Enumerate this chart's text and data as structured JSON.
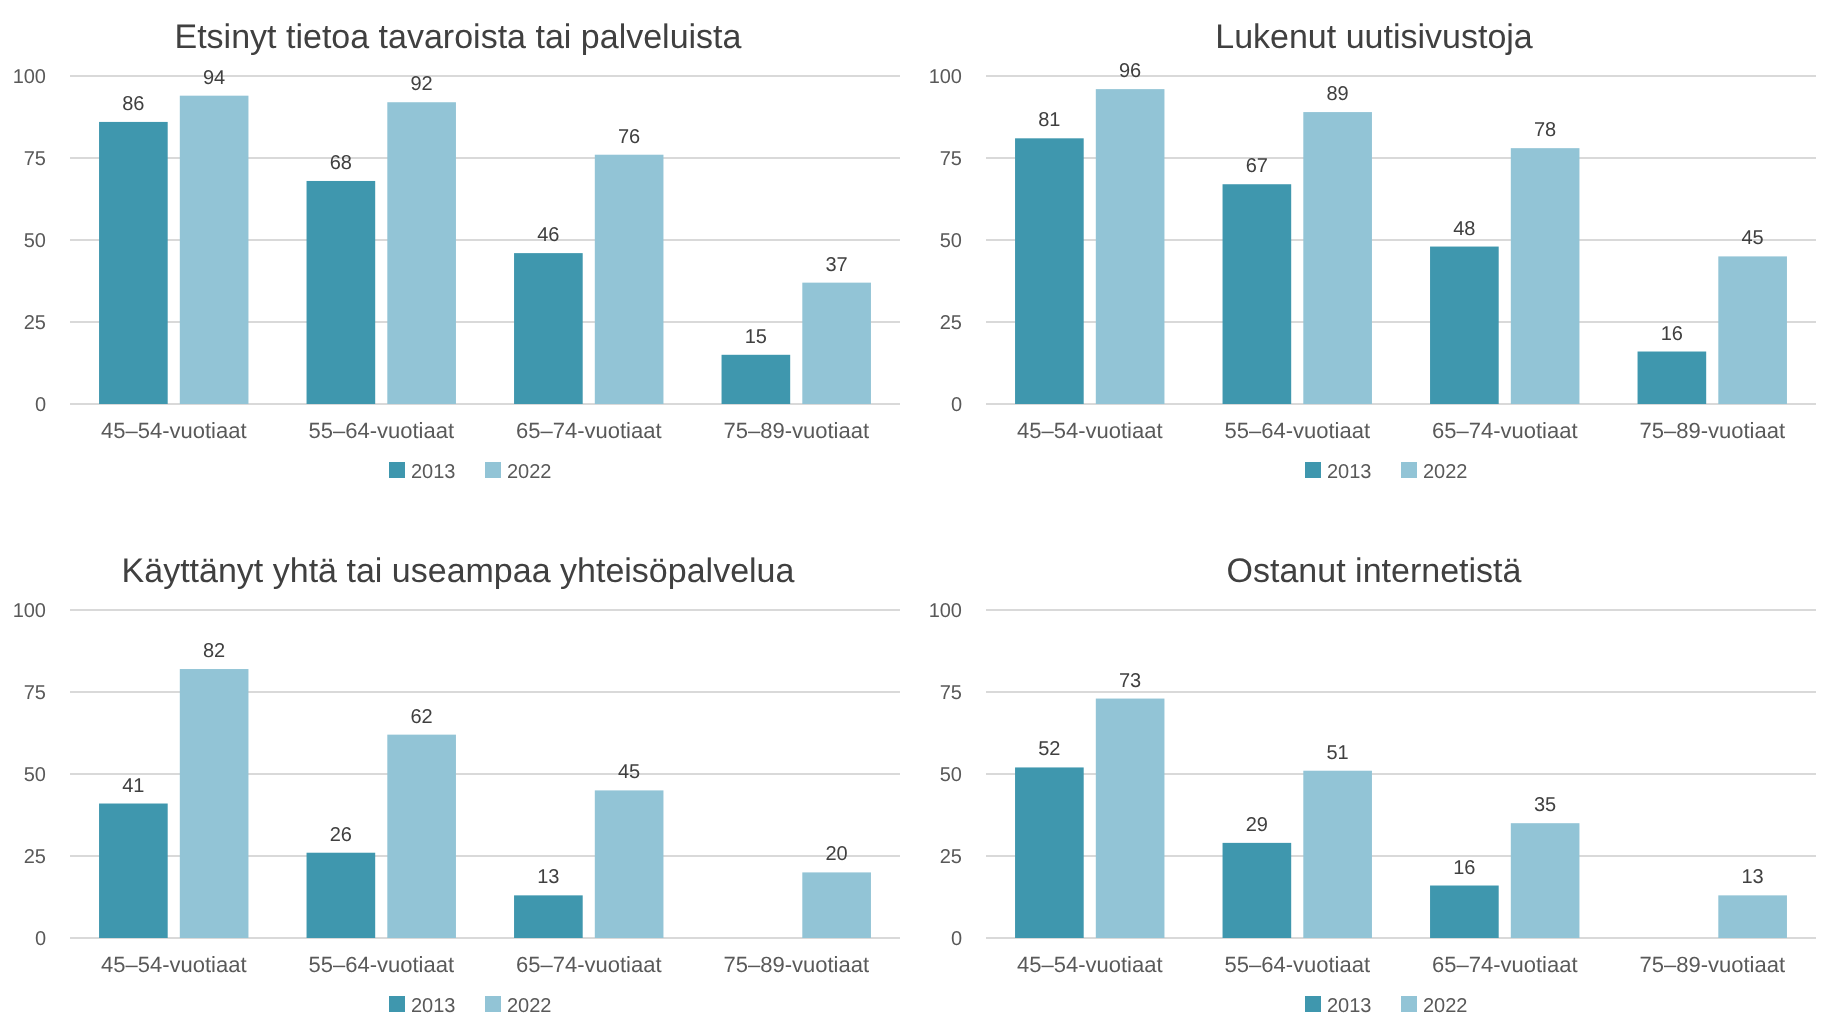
{
  "chart_data": [
    {
      "type": "bar",
      "title": "Etsinyt tietoa tavaroista tai palveluista",
      "categories": [
        "45–54-vuotiaat",
        "55–64-vuotiaat",
        "65–74-vuotiaat",
        "75–89-vuotiaat"
      ],
      "series": [
        {
          "name": "2013",
          "color": "#3f97ae",
          "values": [
            86,
            68,
            46,
            15
          ]
        },
        {
          "name": "2022",
          "color": "#92c4d6",
          "values": [
            94,
            92,
            76,
            37
          ]
        }
      ],
      "ylim": [
        0,
        100
      ],
      "yticks": [
        0,
        25,
        50,
        75,
        100
      ],
      "grid": "y",
      "legend": "bottom",
      "data_labels": true
    },
    {
      "type": "bar",
      "title": "Lukenut uutisivustoja",
      "categories": [
        "45–54-vuotiaat",
        "55–64-vuotiaat",
        "65–74-vuotiaat",
        "75–89-vuotiaat"
      ],
      "series": [
        {
          "name": "2013",
          "color": "#3f97ae",
          "values": [
            81,
            67,
            48,
            16
          ]
        },
        {
          "name": "2022",
          "color": "#92c4d6",
          "values": [
            96,
            89,
            78,
            45
          ]
        }
      ],
      "ylim": [
        0,
        100
      ],
      "yticks": [
        0,
        25,
        50,
        75,
        100
      ],
      "grid": "y",
      "legend": "bottom",
      "data_labels": true
    },
    {
      "type": "bar",
      "title": "Käyttänyt yhtä tai useampaa yhteisöpalvelua",
      "categories": [
        "45–54-vuotiaat",
        "55–64-vuotiaat",
        "65–74-vuotiaat",
        "75–89-vuotiaat"
      ],
      "series": [
        {
          "name": "2013",
          "color": "#3f97ae",
          "values": [
            41,
            26,
            13,
            null
          ]
        },
        {
          "name": "2022",
          "color": "#92c4d6",
          "values": [
            82,
            62,
            45,
            20
          ]
        }
      ],
      "ylim": [
        0,
        100
      ],
      "yticks": [
        0,
        25,
        50,
        75,
        100
      ],
      "grid": "y",
      "legend": "bottom",
      "data_labels": true
    },
    {
      "type": "bar",
      "title": "Ostanut internetistä",
      "categories": [
        "45–54-vuotiaat",
        "55–64-vuotiaat",
        "65–74-vuotiaat",
        "75–89-vuotiaat"
      ],
      "series": [
        {
          "name": "2013",
          "color": "#3f97ae",
          "values": [
            52,
            29,
            16,
            null
          ]
        },
        {
          "name": "2022",
          "color": "#92c4d6",
          "values": [
            73,
            51,
            35,
            13
          ]
        }
      ],
      "ylim": [
        0,
        100
      ],
      "yticks": [
        0,
        25,
        50,
        75,
        100
      ],
      "grid": "y",
      "legend": "bottom",
      "data_labels": true
    }
  ]
}
